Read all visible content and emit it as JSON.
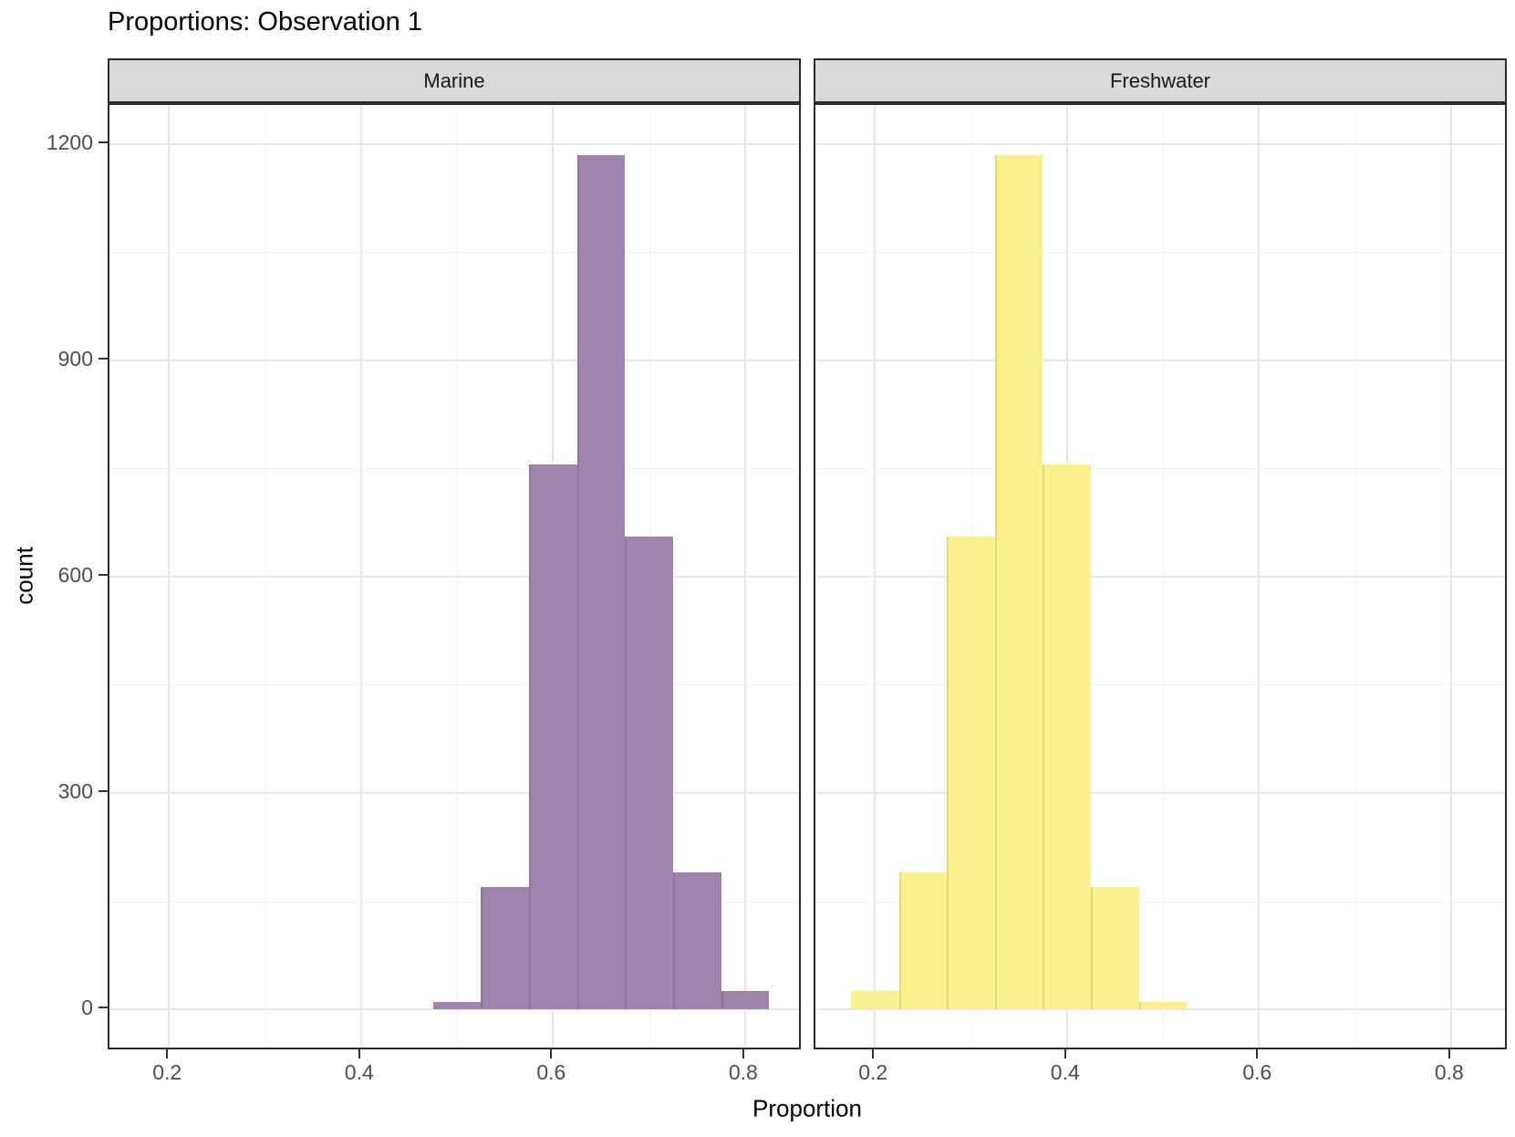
{
  "chart_data": {
    "type": "bar",
    "subtype": "faceted-histogram",
    "title": "Proportions: Observation 1",
    "xlabel": "Proportion",
    "ylabel": "count",
    "x_ticks": [
      0.2,
      0.4,
      0.6,
      0.8
    ],
    "x_minor": [
      0.3,
      0.5,
      0.7
    ],
    "y_ticks": [
      0,
      300,
      600,
      900,
      1200
    ],
    "y_minor": [
      150,
      450,
      750,
      1050
    ],
    "xlim": [
      0.138,
      0.86
    ],
    "ylim": [
      -58,
      1254
    ],
    "binwidth": 0.05,
    "grid": "on",
    "legend": "none",
    "facets": [
      {
        "label": "Marine",
        "fill": "#a184ad",
        "bins": [
          {
            "x0": 0.475,
            "x1": 0.525,
            "count": 10
          },
          {
            "x0": 0.525,
            "x1": 0.575,
            "count": 170
          },
          {
            "x0": 0.575,
            "x1": 0.625,
            "count": 755
          },
          {
            "x0": 0.625,
            "x1": 0.675,
            "count": 1185
          },
          {
            "x0": 0.675,
            "x1": 0.725,
            "count": 655
          },
          {
            "x0": 0.725,
            "x1": 0.775,
            "count": 190
          },
          {
            "x0": 0.775,
            "x1": 0.825,
            "count": 25
          }
        ]
      },
      {
        "label": "Freshwater",
        "fill": "#faf08e",
        "bins": [
          {
            "x0": 0.175,
            "x1": 0.225,
            "count": 25
          },
          {
            "x0": 0.225,
            "x1": 0.275,
            "count": 190
          },
          {
            "x0": 0.275,
            "x1": 0.325,
            "count": 655
          },
          {
            "x0": 0.325,
            "x1": 0.375,
            "count": 1185
          },
          {
            "x0": 0.375,
            "x1": 0.425,
            "count": 755
          },
          {
            "x0": 0.425,
            "x1": 0.475,
            "count": 170
          },
          {
            "x0": 0.475,
            "x1": 0.525,
            "count": 10
          }
        ]
      }
    ],
    "style": {
      "panel_bg": "#ffffff",
      "figure_bg": "#ffffff",
      "strip_bg": "#d9d9d9",
      "panel_border": "#2b2b2b",
      "grid_major": "#e7e7e7",
      "grid_minor": "#f2f2f2",
      "axis_text": "#4d4d4d",
      "tick_color": "#333333",
      "title_color": "#000000"
    }
  }
}
